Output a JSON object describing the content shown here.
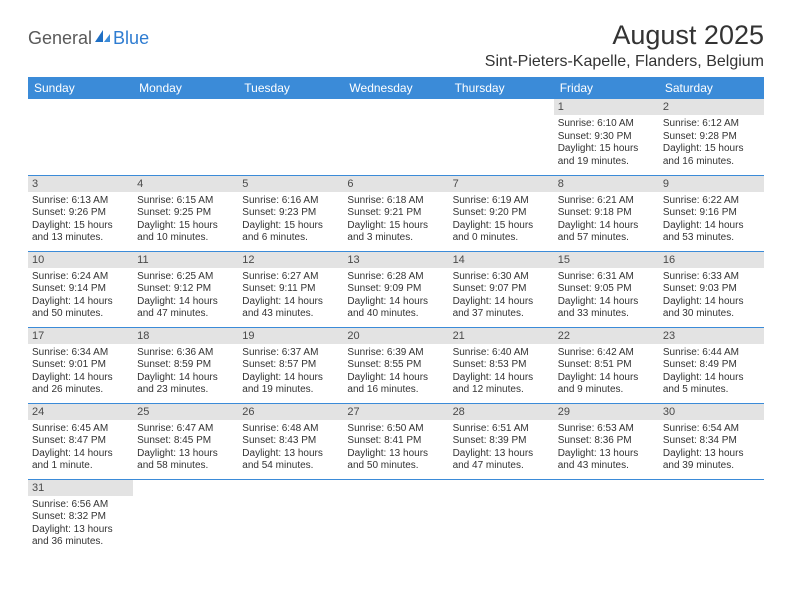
{
  "logo": {
    "general": "General",
    "blue": "Blue"
  },
  "title": "August 2025",
  "location": "Sint-Pieters-Kapelle, Flanders, Belgium",
  "colors": {
    "header_bg": "#3b8bd8",
    "header_text": "#ffffff",
    "daynum_bg": "#e3e3e3",
    "text": "#333333",
    "rule": "#3b8bd8",
    "logo_blue": "#2e7cd1",
    "logo_gray": "#5a5a5a"
  },
  "weekdays": [
    "Sunday",
    "Monday",
    "Tuesday",
    "Wednesday",
    "Thursday",
    "Friday",
    "Saturday"
  ],
  "weeks": [
    [
      null,
      null,
      null,
      null,
      null,
      {
        "n": "1",
        "sunrise": "Sunrise: 6:10 AM",
        "sunset": "Sunset: 9:30 PM",
        "daylight": "Daylight: 15 hours and 19 minutes."
      },
      {
        "n": "2",
        "sunrise": "Sunrise: 6:12 AM",
        "sunset": "Sunset: 9:28 PM",
        "daylight": "Daylight: 15 hours and 16 minutes."
      }
    ],
    [
      {
        "n": "3",
        "sunrise": "Sunrise: 6:13 AM",
        "sunset": "Sunset: 9:26 PM",
        "daylight": "Daylight: 15 hours and 13 minutes."
      },
      {
        "n": "4",
        "sunrise": "Sunrise: 6:15 AM",
        "sunset": "Sunset: 9:25 PM",
        "daylight": "Daylight: 15 hours and 10 minutes."
      },
      {
        "n": "5",
        "sunrise": "Sunrise: 6:16 AM",
        "sunset": "Sunset: 9:23 PM",
        "daylight": "Daylight: 15 hours and 6 minutes."
      },
      {
        "n": "6",
        "sunrise": "Sunrise: 6:18 AM",
        "sunset": "Sunset: 9:21 PM",
        "daylight": "Daylight: 15 hours and 3 minutes."
      },
      {
        "n": "7",
        "sunrise": "Sunrise: 6:19 AM",
        "sunset": "Sunset: 9:20 PM",
        "daylight": "Daylight: 15 hours and 0 minutes."
      },
      {
        "n": "8",
        "sunrise": "Sunrise: 6:21 AM",
        "sunset": "Sunset: 9:18 PM",
        "daylight": "Daylight: 14 hours and 57 minutes."
      },
      {
        "n": "9",
        "sunrise": "Sunrise: 6:22 AM",
        "sunset": "Sunset: 9:16 PM",
        "daylight": "Daylight: 14 hours and 53 minutes."
      }
    ],
    [
      {
        "n": "10",
        "sunrise": "Sunrise: 6:24 AM",
        "sunset": "Sunset: 9:14 PM",
        "daylight": "Daylight: 14 hours and 50 minutes."
      },
      {
        "n": "11",
        "sunrise": "Sunrise: 6:25 AM",
        "sunset": "Sunset: 9:12 PM",
        "daylight": "Daylight: 14 hours and 47 minutes."
      },
      {
        "n": "12",
        "sunrise": "Sunrise: 6:27 AM",
        "sunset": "Sunset: 9:11 PM",
        "daylight": "Daylight: 14 hours and 43 minutes."
      },
      {
        "n": "13",
        "sunrise": "Sunrise: 6:28 AM",
        "sunset": "Sunset: 9:09 PM",
        "daylight": "Daylight: 14 hours and 40 minutes."
      },
      {
        "n": "14",
        "sunrise": "Sunrise: 6:30 AM",
        "sunset": "Sunset: 9:07 PM",
        "daylight": "Daylight: 14 hours and 37 minutes."
      },
      {
        "n": "15",
        "sunrise": "Sunrise: 6:31 AM",
        "sunset": "Sunset: 9:05 PM",
        "daylight": "Daylight: 14 hours and 33 minutes."
      },
      {
        "n": "16",
        "sunrise": "Sunrise: 6:33 AM",
        "sunset": "Sunset: 9:03 PM",
        "daylight": "Daylight: 14 hours and 30 minutes."
      }
    ],
    [
      {
        "n": "17",
        "sunrise": "Sunrise: 6:34 AM",
        "sunset": "Sunset: 9:01 PM",
        "daylight": "Daylight: 14 hours and 26 minutes."
      },
      {
        "n": "18",
        "sunrise": "Sunrise: 6:36 AM",
        "sunset": "Sunset: 8:59 PM",
        "daylight": "Daylight: 14 hours and 23 minutes."
      },
      {
        "n": "19",
        "sunrise": "Sunrise: 6:37 AM",
        "sunset": "Sunset: 8:57 PM",
        "daylight": "Daylight: 14 hours and 19 minutes."
      },
      {
        "n": "20",
        "sunrise": "Sunrise: 6:39 AM",
        "sunset": "Sunset: 8:55 PM",
        "daylight": "Daylight: 14 hours and 16 minutes."
      },
      {
        "n": "21",
        "sunrise": "Sunrise: 6:40 AM",
        "sunset": "Sunset: 8:53 PM",
        "daylight": "Daylight: 14 hours and 12 minutes."
      },
      {
        "n": "22",
        "sunrise": "Sunrise: 6:42 AM",
        "sunset": "Sunset: 8:51 PM",
        "daylight": "Daylight: 14 hours and 9 minutes."
      },
      {
        "n": "23",
        "sunrise": "Sunrise: 6:44 AM",
        "sunset": "Sunset: 8:49 PM",
        "daylight": "Daylight: 14 hours and 5 minutes."
      }
    ],
    [
      {
        "n": "24",
        "sunrise": "Sunrise: 6:45 AM",
        "sunset": "Sunset: 8:47 PM",
        "daylight": "Daylight: 14 hours and 1 minute."
      },
      {
        "n": "25",
        "sunrise": "Sunrise: 6:47 AM",
        "sunset": "Sunset: 8:45 PM",
        "daylight": "Daylight: 13 hours and 58 minutes."
      },
      {
        "n": "26",
        "sunrise": "Sunrise: 6:48 AM",
        "sunset": "Sunset: 8:43 PM",
        "daylight": "Daylight: 13 hours and 54 minutes."
      },
      {
        "n": "27",
        "sunrise": "Sunrise: 6:50 AM",
        "sunset": "Sunset: 8:41 PM",
        "daylight": "Daylight: 13 hours and 50 minutes."
      },
      {
        "n": "28",
        "sunrise": "Sunrise: 6:51 AM",
        "sunset": "Sunset: 8:39 PM",
        "daylight": "Daylight: 13 hours and 47 minutes."
      },
      {
        "n": "29",
        "sunrise": "Sunrise: 6:53 AM",
        "sunset": "Sunset: 8:36 PM",
        "daylight": "Daylight: 13 hours and 43 minutes."
      },
      {
        "n": "30",
        "sunrise": "Sunrise: 6:54 AM",
        "sunset": "Sunset: 8:34 PM",
        "daylight": "Daylight: 13 hours and 39 minutes."
      }
    ],
    [
      {
        "n": "31",
        "sunrise": "Sunrise: 6:56 AM",
        "sunset": "Sunset: 8:32 PM",
        "daylight": "Daylight: 13 hours and 36 minutes."
      },
      null,
      null,
      null,
      null,
      null,
      null
    ]
  ]
}
